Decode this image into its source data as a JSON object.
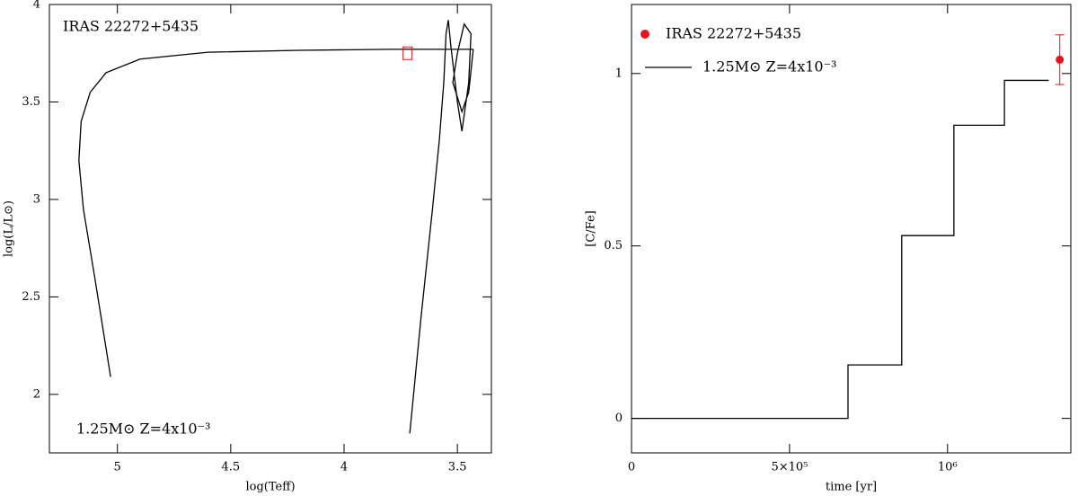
{
  "chart_data": [
    {
      "type": "line",
      "x_label": "log(Teff)",
      "y_label": "log(L/L⊙)",
      "annotations": [
        "IRAS 22272+5435",
        "1.25M⊙  Z=4x10⁻³"
      ],
      "xlim": [
        5.3,
        3.35
      ],
      "ylim": [
        1.7,
        4.0
      ],
      "xticks": [
        5,
        4.5,
        4,
        3.5
      ],
      "yticks": [
        2,
        2.5,
        3,
        3.5,
        4
      ],
      "series": [
        {
          "color": "#000000",
          "style": "line",
          "x": [
            5.03,
            5.1,
            5.15,
            5.17,
            5.16,
            5.12,
            5.05,
            4.9,
            4.6,
            4.2,
            3.8,
            3.43
          ],
          "values": [
            2.09,
            2.6,
            2.95,
            3.2,
            3.4,
            3.55,
            3.65,
            3.72,
            3.755,
            3.765,
            3.77,
            3.77
          ]
        },
        {
          "color": "#000000",
          "style": "line",
          "x": [
            3.71,
            3.66,
            3.61,
            3.58,
            3.56,
            3.55,
            3.54,
            3.53,
            3.5,
            3.48,
            3.45,
            3.44,
            3.47,
            3.5,
            3.52,
            3.48,
            3.45,
            3.43
          ],
          "values": [
            1.8,
            2.4,
            2.95,
            3.3,
            3.6,
            3.85,
            3.92,
            3.8,
            3.5,
            3.35,
            3.6,
            3.85,
            3.9,
            3.75,
            3.6,
            3.45,
            3.55,
            3.77
          ]
        },
        {
          "color": "#e8141a",
          "style": "marker",
          "marker": "square",
          "x": [
            3.72
          ],
          "values": [
            3.75
          ]
        }
      ]
    },
    {
      "type": "line",
      "x_label": "time [yr]",
      "y_label": "[C/Fe]",
      "xlim": [
        0,
        1390000
      ],
      "ylim": [
        -0.1,
        1.2
      ],
      "xticks": [
        0,
        {
          "value": 500000,
          "label": "5×10⁵"
        },
        {
          "value": 1000000,
          "label": "10⁶"
        }
      ],
      "yticks": [
        0,
        0.5,
        1
      ],
      "series": [
        {
          "name": "IRAS 22272+5435",
          "color": "#e8141a",
          "style": "marker",
          "marker": "circle",
          "x": [
            1355000
          ],
          "values": [
            1.04
          ],
          "errors": [
            0.072
          ]
        },
        {
          "name": "1.25M⊙  Z=4x10⁻³",
          "color": "#000000",
          "style": "steps",
          "x": [
            0,
            685000,
            855000,
            1020000,
            1180000,
            1320000
          ],
          "values": [
            0,
            0.155,
            0.53,
            0.85,
            0.98,
            0.98
          ]
        }
      ]
    }
  ]
}
